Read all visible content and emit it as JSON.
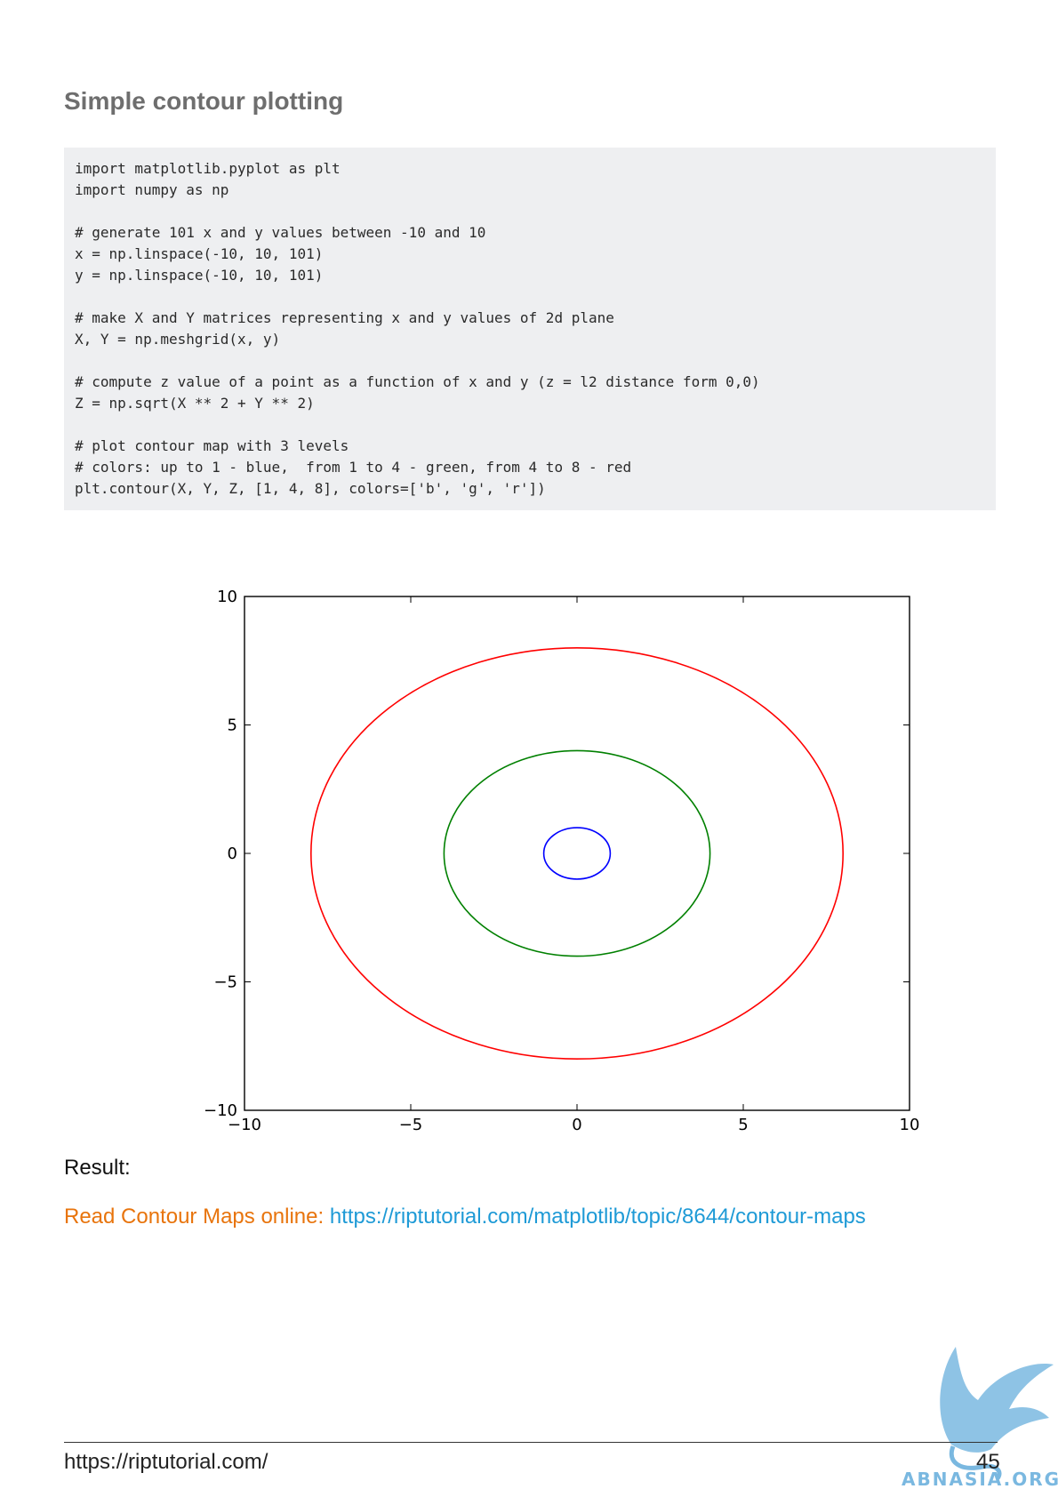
{
  "title": "Simple contour plotting",
  "code": "import matplotlib.pyplot as plt\nimport numpy as np\n\n# generate 101 x and y values between -10 and 10\nx = np.linspace(-10, 10, 101)\ny = np.linspace(-10, 10, 101)\n\n# make X and Y matrices representing x and y values of 2d plane\nX, Y = np.meshgrid(x, y)\n\n# compute z value of a point as a function of x and y (z = l2 distance form 0,0)\nZ = np.sqrt(X ** 2 + Y ** 2)\n\n# plot contour map with 3 levels\n# colors: up to 1 - blue,  from 1 to 4 - green, from 4 to 8 - red\nplt.contour(X, Y, Z, [1, 4, 8], colors=['b', 'g', 'r'])",
  "chart_data": {
    "type": "contour",
    "xlim": [
      -10,
      10
    ],
    "ylim": [
      -10,
      10
    ],
    "xticks": [
      -10,
      -5,
      0,
      5,
      10
    ],
    "yticks": [
      -10,
      -5,
      0,
      5,
      10
    ],
    "xtick_labels": [
      "−10",
      "−5",
      "0",
      "5",
      "10"
    ],
    "ytick_labels": [
      "−10",
      "−5",
      "0",
      "5",
      "10"
    ],
    "grid": false,
    "series": [
      {
        "level": 1,
        "radius": 1,
        "color": "#0000ff"
      },
      {
        "level": 4,
        "radius": 4,
        "color": "#008000"
      },
      {
        "level": 8,
        "radius": 8,
        "color": "#ff0000"
      }
    ]
  },
  "result_label": "Result:",
  "read_online": {
    "label": "Read Contour Maps online: ",
    "url": "https://riptutorial.com/matplotlib/topic/8644/contour-maps"
  },
  "footer": {
    "url": "https://riptutorial.com/",
    "page_number": "45"
  },
  "watermark": {
    "text": "ABNASIA.ORG",
    "color": "#7ab8e0"
  }
}
